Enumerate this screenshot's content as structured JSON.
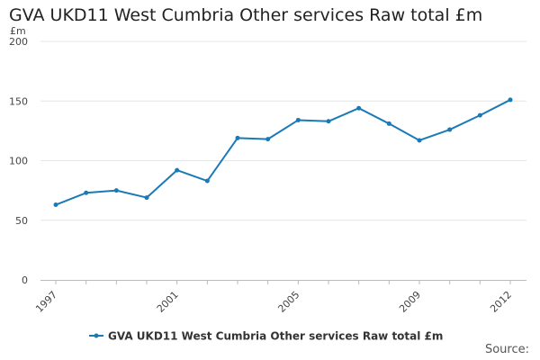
{
  "chart_data": {
    "type": "line",
    "title": "GVA UKD11 West Cumbria Other services Raw total £m",
    "ylabel": "£m",
    "xlabel": "",
    "x": [
      1997,
      1998,
      1999,
      2000,
      2001,
      2002,
      2003,
      2004,
      2005,
      2006,
      2007,
      2008,
      2009,
      2010,
      2011,
      2012
    ],
    "series": [
      {
        "name": "GVA UKD11 West Cumbria Other services Raw total £m",
        "color": "#1a7ab8",
        "values": [
          63,
          73,
          75,
          69,
          92,
          83,
          119,
          118,
          134,
          133,
          144,
          131,
          117,
          126,
          138,
          151
        ]
      }
    ],
    "xticks": [
      "1997",
      "2001",
      "2005",
      "2009",
      "2012"
    ],
    "yticks": [
      "0",
      "50",
      "100",
      "150",
      "200"
    ],
    "ylim": [
      0,
      200
    ],
    "grid": true,
    "legend": "bottom-center"
  },
  "source_label": "Source:"
}
